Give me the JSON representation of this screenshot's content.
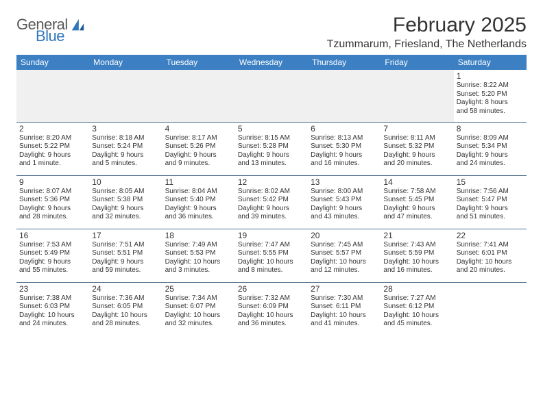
{
  "logo": {
    "word1": "General",
    "word2": "Blue"
  },
  "colors": {
    "header_bg": "#3c80c3",
    "header_text": "#ffffff",
    "text": "#333333",
    "border": "#4a6c8e",
    "empty_bg": "#f0f0f0",
    "logo_gray": "#575756",
    "logo_blue": "#2f77bc"
  },
  "title": "February 2025",
  "location": "Tzummarum, Friesland, The Netherlands",
  "weekdays": [
    "Sunday",
    "Monday",
    "Tuesday",
    "Wednesday",
    "Thursday",
    "Friday",
    "Saturday"
  ],
  "weeks": [
    [
      null,
      null,
      null,
      null,
      null,
      null,
      {
        "n": "1",
        "sr": "Sunrise: 8:22 AM",
        "ss": "Sunset: 5:20 PM",
        "dl1": "Daylight: 8 hours",
        "dl2": "and 58 minutes."
      }
    ],
    [
      {
        "n": "2",
        "sr": "Sunrise: 8:20 AM",
        "ss": "Sunset: 5:22 PM",
        "dl1": "Daylight: 9 hours",
        "dl2": "and 1 minute."
      },
      {
        "n": "3",
        "sr": "Sunrise: 8:18 AM",
        "ss": "Sunset: 5:24 PM",
        "dl1": "Daylight: 9 hours",
        "dl2": "and 5 minutes."
      },
      {
        "n": "4",
        "sr": "Sunrise: 8:17 AM",
        "ss": "Sunset: 5:26 PM",
        "dl1": "Daylight: 9 hours",
        "dl2": "and 9 minutes."
      },
      {
        "n": "5",
        "sr": "Sunrise: 8:15 AM",
        "ss": "Sunset: 5:28 PM",
        "dl1": "Daylight: 9 hours",
        "dl2": "and 13 minutes."
      },
      {
        "n": "6",
        "sr": "Sunrise: 8:13 AM",
        "ss": "Sunset: 5:30 PM",
        "dl1": "Daylight: 9 hours",
        "dl2": "and 16 minutes."
      },
      {
        "n": "7",
        "sr": "Sunrise: 8:11 AM",
        "ss": "Sunset: 5:32 PM",
        "dl1": "Daylight: 9 hours",
        "dl2": "and 20 minutes."
      },
      {
        "n": "8",
        "sr": "Sunrise: 8:09 AM",
        "ss": "Sunset: 5:34 PM",
        "dl1": "Daylight: 9 hours",
        "dl2": "and 24 minutes."
      }
    ],
    [
      {
        "n": "9",
        "sr": "Sunrise: 8:07 AM",
        "ss": "Sunset: 5:36 PM",
        "dl1": "Daylight: 9 hours",
        "dl2": "and 28 minutes."
      },
      {
        "n": "10",
        "sr": "Sunrise: 8:05 AM",
        "ss": "Sunset: 5:38 PM",
        "dl1": "Daylight: 9 hours",
        "dl2": "and 32 minutes."
      },
      {
        "n": "11",
        "sr": "Sunrise: 8:04 AM",
        "ss": "Sunset: 5:40 PM",
        "dl1": "Daylight: 9 hours",
        "dl2": "and 36 minutes."
      },
      {
        "n": "12",
        "sr": "Sunrise: 8:02 AM",
        "ss": "Sunset: 5:42 PM",
        "dl1": "Daylight: 9 hours",
        "dl2": "and 39 minutes."
      },
      {
        "n": "13",
        "sr": "Sunrise: 8:00 AM",
        "ss": "Sunset: 5:43 PM",
        "dl1": "Daylight: 9 hours",
        "dl2": "and 43 minutes."
      },
      {
        "n": "14",
        "sr": "Sunrise: 7:58 AM",
        "ss": "Sunset: 5:45 PM",
        "dl1": "Daylight: 9 hours",
        "dl2": "and 47 minutes."
      },
      {
        "n": "15",
        "sr": "Sunrise: 7:56 AM",
        "ss": "Sunset: 5:47 PM",
        "dl1": "Daylight: 9 hours",
        "dl2": "and 51 minutes."
      }
    ],
    [
      {
        "n": "16",
        "sr": "Sunrise: 7:53 AM",
        "ss": "Sunset: 5:49 PM",
        "dl1": "Daylight: 9 hours",
        "dl2": "and 55 minutes."
      },
      {
        "n": "17",
        "sr": "Sunrise: 7:51 AM",
        "ss": "Sunset: 5:51 PM",
        "dl1": "Daylight: 9 hours",
        "dl2": "and 59 minutes."
      },
      {
        "n": "18",
        "sr": "Sunrise: 7:49 AM",
        "ss": "Sunset: 5:53 PM",
        "dl1": "Daylight: 10 hours",
        "dl2": "and 3 minutes."
      },
      {
        "n": "19",
        "sr": "Sunrise: 7:47 AM",
        "ss": "Sunset: 5:55 PM",
        "dl1": "Daylight: 10 hours",
        "dl2": "and 8 minutes."
      },
      {
        "n": "20",
        "sr": "Sunrise: 7:45 AM",
        "ss": "Sunset: 5:57 PM",
        "dl1": "Daylight: 10 hours",
        "dl2": "and 12 minutes."
      },
      {
        "n": "21",
        "sr": "Sunrise: 7:43 AM",
        "ss": "Sunset: 5:59 PM",
        "dl1": "Daylight: 10 hours",
        "dl2": "and 16 minutes."
      },
      {
        "n": "22",
        "sr": "Sunrise: 7:41 AM",
        "ss": "Sunset: 6:01 PM",
        "dl1": "Daylight: 10 hours",
        "dl2": "and 20 minutes."
      }
    ],
    [
      {
        "n": "23",
        "sr": "Sunrise: 7:38 AM",
        "ss": "Sunset: 6:03 PM",
        "dl1": "Daylight: 10 hours",
        "dl2": "and 24 minutes."
      },
      {
        "n": "24",
        "sr": "Sunrise: 7:36 AM",
        "ss": "Sunset: 6:05 PM",
        "dl1": "Daylight: 10 hours",
        "dl2": "and 28 minutes."
      },
      {
        "n": "25",
        "sr": "Sunrise: 7:34 AM",
        "ss": "Sunset: 6:07 PM",
        "dl1": "Daylight: 10 hours",
        "dl2": "and 32 minutes."
      },
      {
        "n": "26",
        "sr": "Sunrise: 7:32 AM",
        "ss": "Sunset: 6:09 PM",
        "dl1": "Daylight: 10 hours",
        "dl2": "and 36 minutes."
      },
      {
        "n": "27",
        "sr": "Sunrise: 7:30 AM",
        "ss": "Sunset: 6:11 PM",
        "dl1": "Daylight: 10 hours",
        "dl2": "and 41 minutes."
      },
      {
        "n": "28",
        "sr": "Sunrise: 7:27 AM",
        "ss": "Sunset: 6:12 PM",
        "dl1": "Daylight: 10 hours",
        "dl2": "and 45 minutes."
      },
      null
    ]
  ]
}
